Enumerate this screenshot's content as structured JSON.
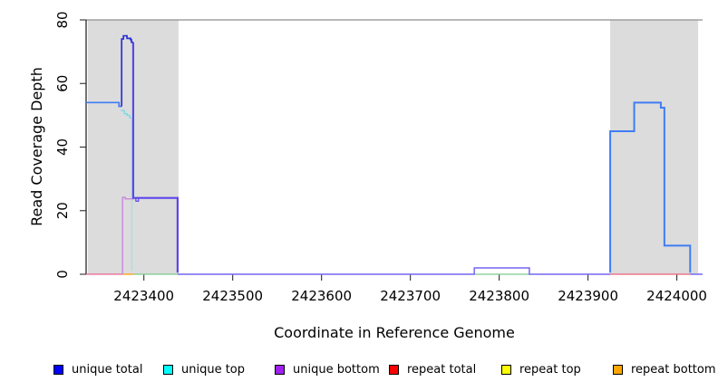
{
  "chart_data": {
    "type": "line",
    "title": "",
    "xlabel": "Coordinate in Reference Genome",
    "ylabel": "Read Coverage Depth",
    "xlim": [
      2423335,
      2424029
    ],
    "ylim": [
      0,
      80
    ],
    "xticks": [
      2423400,
      2423500,
      2423600,
      2423700,
      2423800,
      2423900,
      2424000
    ],
    "yticks": [
      0,
      20,
      40,
      60,
      80
    ],
    "grid": false,
    "top_rule_y": 80,
    "top_rule_color": "#8e8e8e",
    "highlight_regions": [
      {
        "name": "repeat-region-left",
        "x0": 2423337,
        "x1": 2423439,
        "color": "#dcdcdc"
      },
      {
        "name": "repeat-region-right",
        "x0": 2423925,
        "x1": 2424024,
        "color": "#dcdcdc"
      }
    ],
    "series": [
      {
        "name": "repeat-total-zero-left",
        "color": "#ed6390",
        "width": 1.3,
        "points": [
          [
            2423335,
            0
          ],
          [
            2423376,
            0
          ]
        ]
      },
      {
        "name": "repeat-bottom-zero",
        "color": "#ffa217",
        "width": 1.4,
        "points": [
          [
            2423376,
            0
          ],
          [
            2423389,
            0
          ]
        ]
      },
      {
        "name": "unique-top-zero-left",
        "color": "#7cc98f",
        "width": 1.3,
        "points": [
          [
            2423389,
            0
          ],
          [
            2423438,
            0
          ]
        ]
      },
      {
        "name": "unique-top-zero-bump",
        "color": "#7cc98f",
        "width": 1.3,
        "points": [
          [
            2423772,
            0
          ],
          [
            2423834,
            0
          ]
        ]
      },
      {
        "name": "repeat-total-zero-right",
        "color": "#ed5f78",
        "width": 1.3,
        "points": [
          [
            2423925,
            0
          ],
          [
            2424015,
            0
          ]
        ]
      },
      {
        "name": "unique-mid-zero-and-bump",
        "color": "#7467ef",
        "width": 1.5,
        "points": [
          [
            2423438,
            0
          ],
          [
            2423772,
            0
          ],
          [
            2423772,
            2
          ],
          [
            2423834,
            2
          ],
          [
            2423834,
            0
          ],
          [
            2423925,
            0
          ]
        ]
      },
      {
        "name": "unique-zero-tail-right",
        "color": "#7467ef",
        "width": 1.5,
        "points": [
          [
            2424015,
            0
          ],
          [
            2424029,
            0
          ]
        ]
      },
      {
        "name": "unique-top-drop",
        "color": "#a5e0dc",
        "width": 1.3,
        "points": [
          [
            2423386.5,
            49
          ],
          [
            2423386.5,
            1
          ]
        ]
      },
      {
        "name": "unique-top-steps",
        "color": "#72d9e8",
        "width": 1.3,
        "points": [
          [
            2423374,
            51.5
          ],
          [
            2423378,
            51.5
          ],
          [
            2423378,
            50.5
          ],
          [
            2423381,
            50.5
          ],
          [
            2423381,
            50
          ],
          [
            2423384,
            50
          ],
          [
            2423384,
            49.2
          ],
          [
            2423386,
            49.2
          ]
        ]
      },
      {
        "name": "unique-bottom-rise",
        "color": "#c77fe0",
        "width": 1.3,
        "points": [
          [
            2423376,
            0
          ],
          [
            2423376,
            24.2
          ],
          [
            2423379,
            24.2
          ],
          [
            2423379,
            23.7
          ],
          [
            2423389,
            23.7
          ]
        ]
      },
      {
        "name": "unique-bottom-notch",
        "color": "#5c46ec",
        "width": 1.2,
        "points": [
          [
            2423391,
            23.8
          ],
          [
            2423391,
            23
          ],
          [
            2423394,
            23
          ],
          [
            2423394,
            23.8
          ]
        ]
      },
      {
        "name": "unique-24-plateau",
        "color": "#5c46ec",
        "width": 2.2,
        "points": [
          [
            2423388,
            73
          ],
          [
            2423388,
            24
          ],
          [
            2423438,
            24
          ],
          [
            2423438,
            0.5
          ]
        ]
      },
      {
        "name": "unique-total-left-54",
        "color": "#3f7df3",
        "width": 1.7,
        "points": [
          [
            2423335,
            54
          ],
          [
            2423372,
            54
          ],
          [
            2423372,
            52.8
          ],
          [
            2423375,
            52.8
          ]
        ]
      },
      {
        "name": "unique-total-spike-75",
        "color": "#2b2fd8",
        "width": 1.7,
        "points": [
          [
            2423375,
            52.8
          ],
          [
            2423375,
            74
          ],
          [
            2423377,
            74
          ],
          [
            2423377,
            75
          ],
          [
            2423381,
            75
          ],
          [
            2423381,
            74.2
          ],
          [
            2423385,
            74.2
          ],
          [
            2423385,
            73.8
          ],
          [
            2423386,
            73.8
          ],
          [
            2423386,
            73
          ],
          [
            2423388,
            73
          ]
        ]
      },
      {
        "name": "unique-total-right",
        "color": "#3f7df3",
        "width": 2,
        "points": [
          [
            2423925,
            0.5
          ],
          [
            2423925,
            45
          ],
          [
            2423952,
            45
          ],
          [
            2423952,
            54
          ],
          [
            2423982,
            54
          ],
          [
            2423982,
            52.4
          ],
          [
            2423986,
            52.4
          ],
          [
            2423986,
            9
          ],
          [
            2424015,
            9
          ],
          [
            2424015,
            0.5
          ]
        ]
      }
    ],
    "legend": [
      {
        "label": "unique total",
        "color": "#0000ff"
      },
      {
        "label": "unique top",
        "color": "#00ffff"
      },
      {
        "label": "unique bottom",
        "color": "#a020f0"
      },
      {
        "label": "repeat total",
        "color": "#ff0000"
      },
      {
        "label": "repeat top",
        "color": "#ffff00"
      },
      {
        "label": "repeat bottom",
        "color": "#ffa500"
      }
    ],
    "legend_position": "bottom"
  }
}
